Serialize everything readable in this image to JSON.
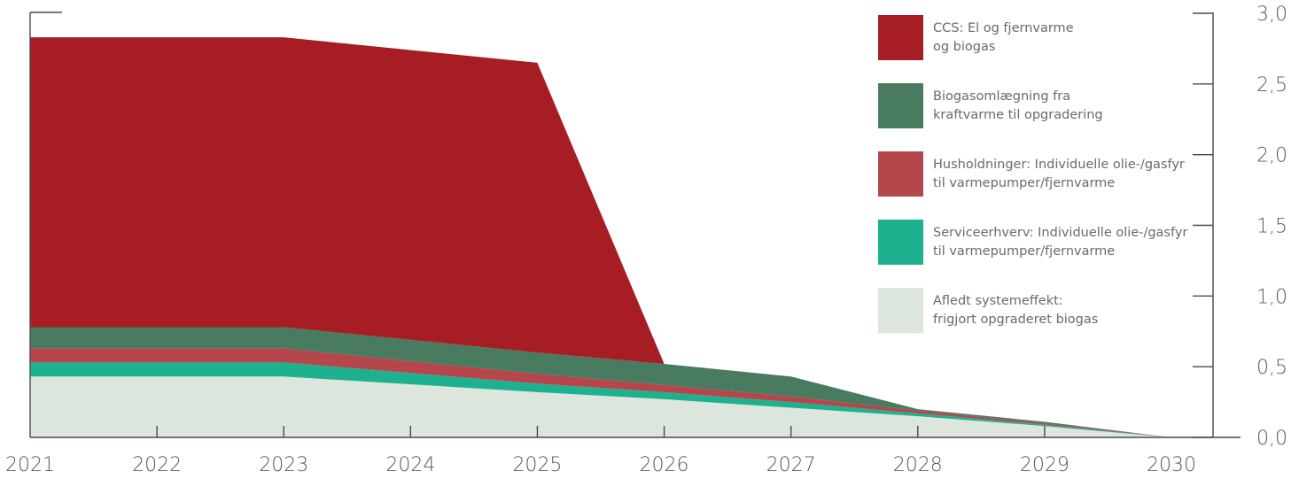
{
  "chart_data": {
    "type": "area",
    "stacked": true,
    "x": [
      2021,
      2023,
      2025,
      2026,
      2027,
      2028,
      2029,
      2030
    ],
    "x_ticks": [
      "2021",
      "2022",
      "2023",
      "2024",
      "2025",
      "2026",
      "2027",
      "2028",
      "2029",
      "2030"
    ],
    "y_ticks": [
      "0,0",
      "0,5",
      "1,0",
      "1,5",
      "2,0",
      "2,5",
      "3,0"
    ],
    "ylim": [
      0,
      3
    ],
    "xlim": [
      2021,
      2030
    ],
    "xlabel": "",
    "ylabel": "",
    "title": "",
    "grid": false,
    "legend_position": "top-right",
    "series": [
      {
        "name": "Afledt systemeffekt: frigjort opgraderet biogas",
        "legend_lines": [
          "Afledt systemeffekt:",
          "frigjort opgraderet biogas"
        ],
        "color": "#dce6dc",
        "x": [
          2021,
          2023,
          2025,
          2026,
          2027,
          2028,
          2029,
          2030
        ],
        "values": [
          0.43,
          0.43,
          0.32,
          0.27,
          0.21,
          0.15,
          0.08,
          0.0
        ]
      },
      {
        "name": "Serviceerhverv: Individuelle olie-/gasfyr til varmepumper/fjernvarme",
        "legend_lines": [
          "Serviceerhverv: Individuelle olie-/gasfyr",
          "til varmepumper/fjernvarme"
        ],
        "color": "#1eb18f",
        "x": [
          2021,
          2023,
          2025,
          2026,
          2027,
          2028,
          2029,
          2030
        ],
        "values": [
          0.1,
          0.1,
          0.06,
          0.05,
          0.04,
          0.02,
          0.01,
          0.0
        ]
      },
      {
        "name": "Husholdninger: Individuelle olie-/gasfyr til varmepumper/fjernvarme",
        "legend_lines": [
          "Husholdninger: Individuelle olie-/gasfyr",
          "til varmepumper/fjernvarme"
        ],
        "color": "#b5464c",
        "x": [
          2021,
          2023,
          2025,
          2026,
          2027,
          2028,
          2029,
          2030
        ],
        "values": [
          0.1,
          0.1,
          0.07,
          0.05,
          0.04,
          0.02,
          0.01,
          0.0
        ]
      },
      {
        "name": "Biogasomlægning fra kraftvarme til opgradering",
        "legend_lines": [
          "Biogasomlægning fra",
          "kraftvarme til opgradering"
        ],
        "color": "#487b5f",
        "x": [
          2021,
          2023,
          2025,
          2026,
          2027,
          2028,
          2029,
          2030
        ],
        "values": [
          0.15,
          0.15,
          0.15,
          0.15,
          0.14,
          0.01,
          0.01,
          0.0
        ]
      },
      {
        "name": "CCS: El og fjernvarme og biogas",
        "legend_lines": [
          "CCS: El og fjernvarme",
          "og biogas"
        ],
        "color": "#a61e24",
        "x": [
          2021,
          2023,
          2025,
          2026,
          2027,
          2028,
          2029,
          2030
        ],
        "values": [
          2.05,
          2.05,
          2.05,
          0.0,
          0.0,
          0.0,
          0.0,
          0.0
        ]
      }
    ],
    "legend_order": [
      4,
      3,
      2,
      1,
      0
    ]
  }
}
